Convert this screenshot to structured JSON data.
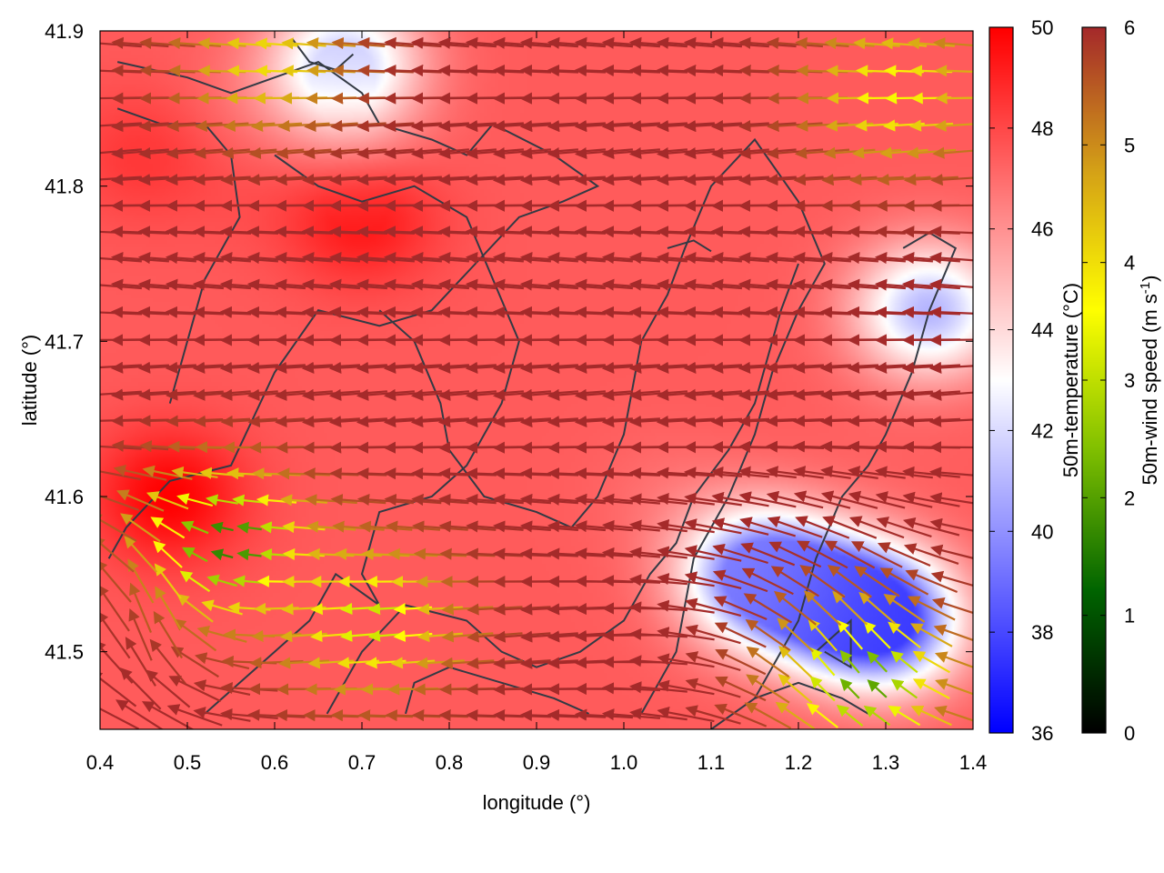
{
  "chart_data": {
    "type": "heatmap",
    "subtype": "temperature field with wind-vector arrows and contour lines",
    "title": "",
    "xlabel": "longitude (°)",
    "ylabel": "latitude (°)",
    "xlim": [
      0.4,
      1.4
    ],
    "ylim": [
      41.45,
      41.9
    ],
    "xticks": [
      "0.4",
      "0.5",
      "0.6",
      "0.7",
      "0.8",
      "0.9",
      "1.0",
      "1.1",
      "1.2",
      "1.3",
      "1.4"
    ],
    "yticks": [
      "41.5",
      "41.6",
      "41.7",
      "41.8",
      "41.9"
    ],
    "grid": false,
    "temperature_colorbar": {
      "label": "50m-temperature (°C)",
      "range": [
        36,
        50
      ],
      "ticks": [
        "36",
        "38",
        "40",
        "42",
        "44",
        "46",
        "48",
        "50"
      ],
      "colors": [
        "#0000ff",
        "#ffffff",
        "#ff0000"
      ]
    },
    "wind_colorbar": {
      "label_prefix": "50m-wind speed (m s",
      "label_sup": "-1",
      "label_suffix": ")",
      "range": [
        0,
        6
      ],
      "ticks": [
        "0",
        "1",
        "2",
        "3",
        "4",
        "5",
        "6"
      ],
      "colors": [
        "#000000",
        "#006400",
        "#7fbf00",
        "#ffff00",
        "#d4a017",
        "#a52a2a"
      ]
    },
    "temperature_field": {
      "cold_centers": [
        {
          "lon": 1.3,
          "lat": 41.52,
          "value": 37.5
        },
        {
          "lon": 1.15,
          "lat": 41.55,
          "value": 39.5
        },
        {
          "lon": 1.35,
          "lat": 41.72,
          "value": 41.0
        },
        {
          "lon": 0.68,
          "lat": 41.88,
          "value": 41.5
        }
      ],
      "warm_centers": [
        {
          "lon": 0.7,
          "lat": 41.78,
          "value": 49.5
        },
        {
          "lon": 0.48,
          "lat": 41.6,
          "value": 50.0
        },
        {
          "lon": 0.95,
          "lat": 41.65,
          "value": 47.5
        },
        {
          "lon": 0.45,
          "lat": 41.82,
          "value": 48.5
        }
      ],
      "background": 47.5
    },
    "wind_field": {
      "pattern": "predominantly westward flow, strong (~6 m/s) in the north and center, weak (1-4 m/s) in the south-west and south-east corners",
      "strong_speed": 6,
      "weak_zones": [
        {
          "lon": 0.55,
          "lat": 41.57,
          "speed": 1.5
        },
        {
          "lon": 0.72,
          "lat": 41.52,
          "speed": 3.0
        },
        {
          "lon": 1.28,
          "lat": 41.48,
          "speed": 2.0
        },
        {
          "lon": 1.32,
          "lat": 41.86,
          "speed": 3.5
        },
        {
          "lon": 0.6,
          "lat": 41.88,
          "speed": 4.0
        }
      ]
    },
    "contours": [
      [
        [
          0.42,
          41.88
        ],
        [
          0.5,
          41.87
        ],
        [
          0.55,
          41.86
        ],
        [
          0.6,
          41.87
        ],
        [
          0.65,
          41.88
        ],
        [
          0.7,
          41.86
        ],
        [
          0.72,
          41.84
        ],
        [
          0.78,
          41.83
        ],
        [
          0.82,
          41.82
        ],
        [
          0.85,
          41.84
        ],
        [
          0.92,
          41.82
        ],
        [
          0.97,
          41.8
        ],
        [
          0.93,
          41.79
        ],
        [
          0.88,
          41.78
        ],
        [
          0.83,
          41.75
        ],
        [
          0.78,
          41.72
        ],
        [
          0.72,
          41.71
        ],
        [
          0.65,
          41.72
        ],
        [
          0.6,
          41.68
        ],
        [
          0.55,
          41.62
        ],
        [
          0.48,
          41.61
        ],
        [
          0.43,
          41.58
        ],
        [
          0.41,
          41.56
        ]
      ],
      [
        [
          0.42,
          41.85
        ],
        [
          0.47,
          41.84
        ],
        [
          0.52,
          41.84
        ],
        [
          0.55,
          41.82
        ],
        [
          0.56,
          41.78
        ],
        [
          0.52,
          41.74
        ],
        [
          0.5,
          41.7
        ],
        [
          0.48,
          41.66
        ]
      ],
      [
        [
          0.6,
          41.82
        ],
        [
          0.65,
          41.8
        ],
        [
          0.7,
          41.79
        ],
        [
          0.76,
          41.8
        ],
        [
          0.82,
          41.78
        ],
        [
          0.85,
          41.74
        ],
        [
          0.88,
          41.7
        ],
        [
          0.86,
          41.66
        ],
        [
          0.82,
          41.62
        ],
        [
          0.78,
          41.6
        ],
        [
          0.72,
          41.59
        ],
        [
          0.7,
          41.55
        ],
        [
          0.72,
          41.53
        ],
        [
          0.67,
          41.55
        ],
        [
          0.64,
          41.52
        ],
        [
          0.6,
          41.5
        ],
        [
          0.56,
          41.48
        ],
        [
          0.52,
          41.46
        ]
      ],
      [
        [
          0.72,
          41.72
        ],
        [
          0.76,
          41.7
        ],
        [
          0.79,
          41.66
        ],
        [
          0.8,
          41.63
        ],
        [
          0.84,
          41.6
        ],
        [
          0.9,
          41.59
        ],
        [
          0.94,
          41.58
        ],
        [
          0.97,
          41.6
        ],
        [
          1.0,
          41.64
        ],
        [
          1.02,
          41.7
        ],
        [
          1.05,
          41.73
        ],
        [
          1.07,
          41.76
        ],
        [
          1.1,
          41.8
        ],
        [
          1.15,
          41.83
        ],
        [
          1.2,
          41.79
        ],
        [
          1.23,
          41.75
        ],
        [
          1.2,
          41.72
        ],
        [
          1.17,
          41.68
        ],
        [
          1.15,
          41.64
        ],
        [
          1.12,
          41.6
        ],
        [
          1.08,
          41.56
        ],
        [
          1.06,
          41.5
        ],
        [
          1.02,
          41.46
        ]
      ],
      [
        [
          0.66,
          41.46
        ],
        [
          0.7,
          41.5
        ],
        [
          0.75,
          41.53
        ],
        [
          0.82,
          41.52
        ],
        [
          0.86,
          41.5
        ],
        [
          0.9,
          41.49
        ],
        [
          0.95,
          41.5
        ],
        [
          1.0,
          41.52
        ],
        [
          1.03,
          41.55
        ],
        [
          1.06,
          41.57
        ],
        [
          1.08,
          41.6
        ],
        [
          1.12,
          41.63
        ],
        [
          1.15,
          41.66
        ],
        [
          1.18,
          41.72
        ],
        [
          1.2,
          41.75
        ]
      ],
      [
        [
          0.75,
          41.46
        ],
        [
          0.76,
          41.48
        ],
        [
          0.8,
          41.49
        ],
        [
          0.86,
          41.48
        ],
        [
          0.92,
          41.47
        ],
        [
          0.96,
          41.46
        ]
      ],
      [
        [
          1.1,
          41.45
        ],
        [
          1.15,
          41.47
        ],
        [
          1.2,
          41.48
        ],
        [
          1.25,
          41.47
        ],
        [
          1.28,
          41.46
        ]
      ],
      [
        [
          1.22,
          41.5
        ],
        [
          1.26,
          41.52
        ],
        [
          1.26,
          41.49
        ],
        [
          1.23,
          41.5
        ]
      ],
      [
        [
          1.32,
          41.76
        ],
        [
          1.35,
          41.77
        ],
        [
          1.38,
          41.76
        ],
        [
          1.35,
          41.72
        ],
        [
          1.33,
          41.68
        ],
        [
          1.3,
          41.64
        ],
        [
          1.28,
          41.62
        ],
        [
          1.25,
          41.6
        ],
        [
          1.22,
          41.56
        ],
        [
          1.2,
          41.52
        ],
        [
          1.18,
          41.5
        ],
        [
          1.15,
          41.47
        ]
      ],
      [
        [
          1.05,
          41.76
        ],
        [
          1.08,
          41.765
        ],
        [
          1.1,
          41.758
        ]
      ],
      [
        [
          0.62,
          41.895
        ],
        [
          0.64,
          41.88
        ],
        [
          0.67,
          41.875
        ],
        [
          0.69,
          41.885
        ]
      ]
    ],
    "annotations": []
  }
}
